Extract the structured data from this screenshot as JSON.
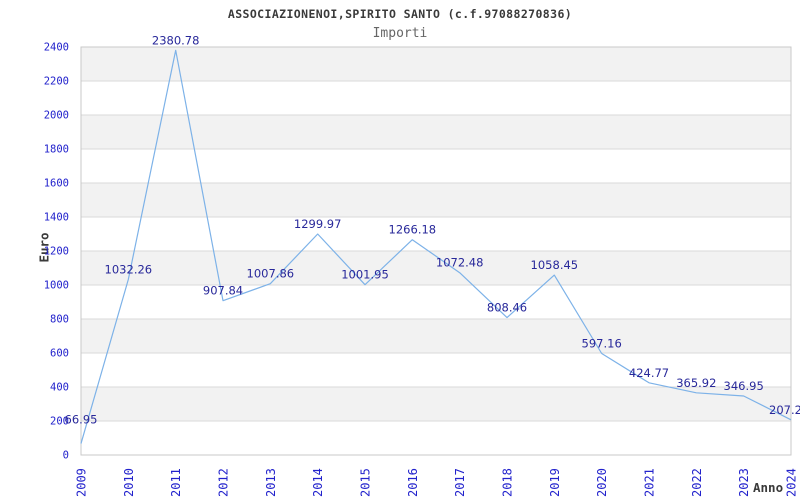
{
  "header": {
    "title": "ASSOCIAZIONENOI,SPIRITO SANTO (c.f.97088270836)",
    "subtitle": "Importi"
  },
  "axes": {
    "y_title": "Euro",
    "x_title": "Anno"
  },
  "chart_data": {
    "type": "line",
    "title": "ASSOCIAZIONENOI,SPIRITO SANTO (c.f.97088270836)",
    "subtitle": "Importi",
    "xlabel": "Anno",
    "ylabel": "Euro",
    "categories": [
      "2009",
      "2010",
      "2011",
      "2012",
      "2013",
      "2014",
      "2015",
      "2016",
      "2017",
      "2018",
      "2019",
      "2020",
      "2021",
      "2022",
      "2023",
      "2024"
    ],
    "values": [
      66.95,
      1032.26,
      2380.78,
      907.84,
      1007.86,
      1299.97,
      1001.95,
      1266.18,
      1072.48,
      808.46,
      1058.45,
      597.16,
      424.77,
      365.92,
      346.95,
      207.2
    ],
    "point_labels": [
      "66.95",
      "1032.26",
      "2380.78",
      "907.84",
      "1007.86",
      "1299.97",
      "1001.95",
      "1266.18",
      "1072.48",
      "808.46",
      "1058.45",
      "597.16",
      "424.77",
      "365.92",
      "346.95",
      "207.2"
    ],
    "series": [
      {
        "name": "Importi",
        "values": [
          66.95,
          1032.26,
          2380.78,
          907.84,
          1007.86,
          1299.97,
          1001.95,
          1266.18,
          1072.48,
          808.46,
          1058.45,
          597.16,
          424.77,
          365.92,
          346.95,
          207.2
        ]
      }
    ],
    "ylim": [
      0,
      2400
    ],
    "ytick_step": 200,
    "yticks": [
      0,
      200,
      400,
      600,
      800,
      1000,
      1200,
      1400,
      1600,
      1800,
      2000,
      2200,
      2400
    ],
    "grid": "horizontal gridlines with alternating gray bands",
    "legend": "none",
    "colors": {
      "line": "#7db2e8",
      "band": "#f2f2f2",
      "gridline": "#d9d9d9",
      "plot_border": "#c9c9c9",
      "tick_label": "#2222cc",
      "point_label": "#28289a",
      "title": "#3a3a3a",
      "subtitle": "#666666",
      "background": "#ffffff"
    }
  }
}
